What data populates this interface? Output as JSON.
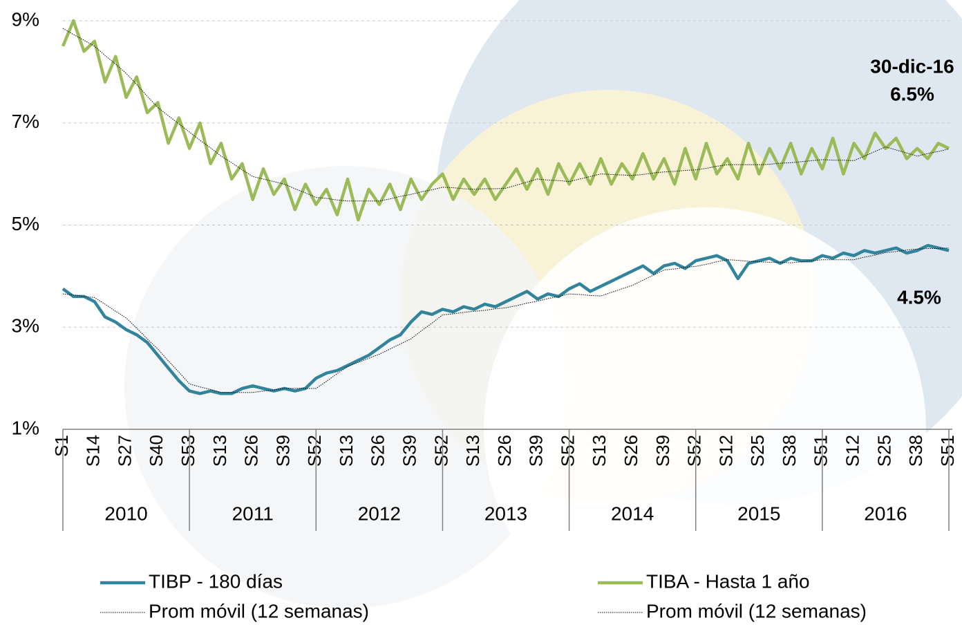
{
  "chart_data": {
    "type": "line",
    "ylim": [
      1,
      9
    ],
    "yticks": [
      {
        "value": 1,
        "label": "1%"
      },
      {
        "value": 3,
        "label": "3%"
      },
      {
        "value": 5,
        "label": "5%"
      },
      {
        "value": 7,
        "label": "7%"
      },
      {
        "value": 9,
        "label": "9%"
      }
    ],
    "grid": true,
    "categories": [
      "S1",
      null,
      null,
      "S14",
      null,
      null,
      "S27",
      null,
      null,
      "S40",
      null,
      null,
      "S53",
      null,
      null,
      "S13",
      null,
      null,
      "S26",
      null,
      null,
      "S39",
      null,
      null,
      "S52",
      null,
      null,
      "S13",
      null,
      null,
      "S26",
      null,
      null,
      "S39",
      null,
      null,
      "S52",
      null,
      null,
      "S13",
      null,
      null,
      "S26",
      null,
      null,
      "S39",
      null,
      null,
      "S52",
      null,
      null,
      "S13",
      null,
      null,
      "S26",
      null,
      null,
      "S39",
      null,
      null,
      "S52",
      null,
      null,
      "S12",
      null,
      null,
      "S25",
      null,
      null,
      "S38",
      null,
      null,
      "S51",
      null,
      null,
      "S12",
      null,
      null,
      "S25",
      null,
      null,
      "S38",
      null,
      null,
      "S51"
    ],
    "years": [
      "2010",
      "2011",
      "2012",
      "2013",
      "2014",
      "2015",
      "2016"
    ],
    "series": [
      {
        "name": "TIBP - 180 días",
        "color": "#31849b",
        "line_style": "solid",
        "values": [
          3.75,
          3.6,
          3.6,
          3.5,
          3.2,
          3.1,
          2.95,
          2.85,
          2.7,
          2.45,
          2.2,
          1.95,
          1.75,
          1.7,
          1.75,
          1.7,
          1.7,
          1.8,
          1.85,
          1.8,
          1.75,
          1.8,
          1.75,
          1.8,
          2.0,
          2.1,
          2.15,
          2.25,
          2.35,
          2.45,
          2.6,
          2.75,
          2.85,
          3.1,
          3.3,
          3.25,
          3.35,
          3.3,
          3.4,
          3.35,
          3.45,
          3.4,
          3.5,
          3.6,
          3.7,
          3.55,
          3.65,
          3.6,
          3.75,
          3.85,
          3.7,
          3.8,
          3.9,
          4.0,
          4.1,
          4.2,
          4.05,
          4.2,
          4.25,
          4.15,
          4.3,
          4.35,
          4.4,
          4.3,
          3.95,
          4.25,
          4.3,
          4.35,
          4.25,
          4.35,
          4.3,
          4.3,
          4.4,
          4.35,
          4.45,
          4.4,
          4.5,
          4.45,
          4.5,
          4.55,
          4.45,
          4.5,
          4.6,
          4.55,
          4.5
        ]
      },
      {
        "name": "TIBA - Hasta 1 año",
        "color": "#9bbb59",
        "line_style": "solid",
        "values": [
          8.5,
          9.0,
          8.4,
          8.6,
          7.8,
          8.3,
          7.5,
          7.9,
          7.2,
          7.4,
          6.6,
          7.1,
          6.5,
          7.0,
          6.2,
          6.6,
          5.9,
          6.2,
          5.5,
          6.1,
          5.6,
          5.9,
          5.3,
          5.8,
          5.4,
          5.7,
          5.2,
          5.9,
          5.1,
          5.7,
          5.4,
          5.8,
          5.3,
          5.9,
          5.5,
          5.8,
          6.0,
          5.5,
          5.9,
          5.6,
          5.9,
          5.5,
          5.8,
          6.1,
          5.7,
          6.1,
          5.6,
          6.2,
          5.8,
          6.2,
          5.8,
          6.3,
          5.8,
          6.2,
          5.9,
          6.4,
          5.9,
          6.3,
          5.8,
          6.5,
          5.9,
          6.6,
          6.0,
          6.3,
          5.9,
          6.6,
          6.0,
          6.5,
          6.1,
          6.6,
          6.0,
          6.5,
          6.1,
          6.7,
          6.0,
          6.6,
          6.3,
          6.8,
          6.5,
          6.7,
          6.3,
          6.5,
          6.3,
          6.6,
          6.5
        ]
      },
      {
        "name": "Prom móvil (12 semanas)",
        "color": "#000000",
        "line_style": "dotted",
        "values": [
          3.65,
          3.63,
          3.6,
          3.58,
          3.45,
          3.31,
          3.18,
          2.98,
          2.77,
          2.57,
          2.34,
          2.12,
          1.89,
          1.83,
          1.78,
          1.72,
          1.72,
          1.72,
          1.72,
          1.75,
          1.77,
          1.8,
          1.8,
          1.8,
          1.8,
          1.94,
          2.09,
          2.23,
          2.31,
          2.39,
          2.47,
          2.57,
          2.67,
          2.77,
          2.93,
          3.08,
          3.24,
          3.26,
          3.29,
          3.31,
          3.33,
          3.36,
          3.38,
          3.42,
          3.47,
          3.51,
          3.56,
          3.6,
          3.65,
          3.64,
          3.62,
          3.61,
          3.68,
          3.75,
          3.82,
          3.92,
          4.02,
          4.12,
          4.14,
          4.17,
          4.19,
          4.23,
          4.28,
          4.32,
          4.31,
          4.29,
          4.28,
          4.27,
          4.27,
          4.26,
          4.28,
          4.3,
          4.32,
          4.32,
          4.32,
          4.32,
          4.37,
          4.41,
          4.46,
          4.48,
          4.51,
          4.53,
          4.54,
          4.54,
          4.55
        ]
      },
      {
        "name": "Prom móvil (12 semanas)",
        "color": "#000000",
        "line_style": "dotted",
        "values": [
          8.85,
          8.73,
          8.62,
          8.5,
          8.32,
          8.15,
          7.97,
          7.75,
          7.52,
          7.3,
          7.14,
          6.98,
          6.82,
          6.66,
          6.51,
          6.35,
          6.22,
          6.08,
          5.95,
          5.9,
          5.85,
          5.8,
          5.71,
          5.63,
          5.54,
          5.52,
          5.49,
          5.47,
          5.47,
          5.47,
          5.47,
          5.51,
          5.56,
          5.6,
          5.65,
          5.69,
          5.74,
          5.73,
          5.71,
          5.7,
          5.71,
          5.71,
          5.72,
          5.78,
          5.84,
          5.9,
          5.88,
          5.87,
          5.85,
          5.9,
          5.95,
          6.0,
          5.99,
          5.98,
          5.97,
          5.99,
          6.02,
          6.04,
          6.05,
          6.07,
          6.08,
          6.11,
          6.15,
          6.18,
          6.18,
          6.18,
          6.18,
          6.19,
          6.21,
          6.22,
          6.24,
          6.26,
          6.28,
          6.27,
          6.27,
          6.26,
          6.35,
          6.44,
          6.53,
          6.47,
          6.41,
          6.35,
          6.4,
          6.44,
          6.49
        ]
      }
    ],
    "annotations": [
      "30-dic-16",
      "6.5%",
      "4.5%"
    ]
  }
}
